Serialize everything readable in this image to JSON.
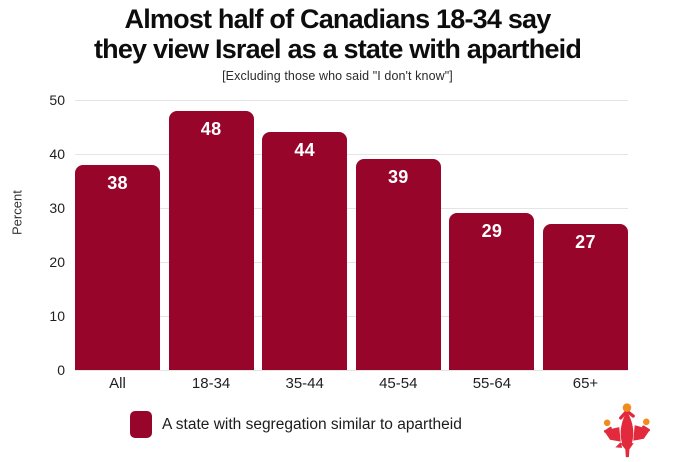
{
  "page": {
    "background": "#ffffff"
  },
  "header": {
    "title_line1": "Almost half of Canadians 18-34 say",
    "title_line2": "they view Israel as a state with apartheid",
    "subtitle": "[Excluding those who said \"I don't know\"]"
  },
  "chart_data": {
    "type": "bar",
    "categories": [
      "All",
      "18-34",
      "35-44",
      "45-54",
      "55-64",
      "65+"
    ],
    "values": [
      38,
      48,
      44,
      39,
      29,
      27
    ],
    "title": "Almost half of Canadians 18-34 say they view Israel as a state with apartheid",
    "subtitle": "[Excluding those who said \"I don't know\"]",
    "xlabel": "",
    "ylabel": "Percent",
    "ylim": [
      0,
      50
    ],
    "yticks": [
      0,
      10,
      20,
      30,
      40,
      50
    ],
    "grid": true,
    "gridline_color": "#e4e4e4",
    "bar_color": "#98052B",
    "value_label_color": "#ffffff",
    "legend_position": "bottom",
    "legend": {
      "items": [
        {
          "label": "A state with segregation similar to apartheid",
          "color": "#98052B"
        }
      ]
    }
  },
  "branding": {
    "logo_icon": "maple-leaf-people-logo",
    "leaf_red": "#E22A3C",
    "accent_orange": "#F08C1E"
  }
}
